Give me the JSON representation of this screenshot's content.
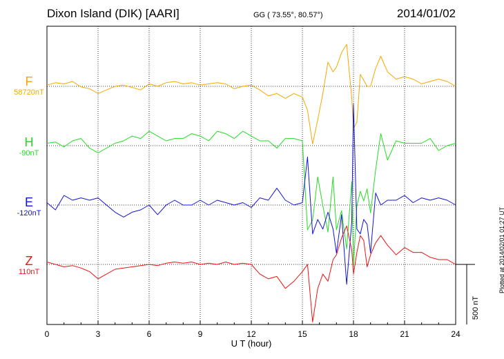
{
  "header": {
    "station": "Dixon Island (DIK)  [AARI]",
    "coords": "GG ( 73.55°,  80.57°)",
    "date": "2014/01/02"
  },
  "footer": {
    "plotted": "Plotted at 2014/02/01 01:27 UT"
  },
  "colors": {
    "F": "#f5a800",
    "H": "#22dd22",
    "E": "#1111dd",
    "Z": "#ee1111"
  },
  "chart_data": {
    "type": "line",
    "title": "Dixon Island (DIK)  [AARI]",
    "xlabel": "U T (hour)",
    "xlim": [
      0,
      24
    ],
    "x_ticks": [
      "0",
      "3",
      "6",
      "9",
      "12",
      "15",
      "18",
      "21",
      "24"
    ],
    "scale_bar": {
      "label": "500 nT",
      "value_nT": 500
    },
    "series": [
      {
        "name": "F",
        "baseline_label": "58720nT",
        "unit": "nT",
        "x": [
          0,
          0.5,
          1,
          1.5,
          2,
          2.5,
          3,
          3.5,
          4,
          4.5,
          5,
          5.5,
          6,
          6.5,
          7,
          7.5,
          8,
          8.5,
          9,
          9.5,
          10,
          10.5,
          11,
          11.5,
          12,
          12.5,
          13,
          13.5,
          14,
          14.5,
          15,
          15.3,
          15.6,
          15.9,
          16.2,
          16.5,
          16.8,
          17,
          17.3,
          17.6,
          17.9,
          18,
          18.2,
          18.4,
          18.6,
          18.8,
          19,
          19.3,
          19.6,
          20,
          20.5,
          21,
          21.5,
          22,
          22.5,
          23,
          23.5,
          24
        ],
        "y": [
          10,
          30,
          20,
          40,
          -5,
          -20,
          -60,
          -30,
          0,
          10,
          -10,
          -30,
          20,
          0,
          30,
          40,
          20,
          30,
          10,
          20,
          30,
          20,
          -20,
          0,
          10,
          -30,
          -80,
          -60,
          -100,
          -60,
          -90,
          -200,
          -480,
          -280,
          -60,
          200,
          120,
          160,
          280,
          350,
          -100,
          -350,
          -300,
          100,
          50,
          0,
          0,
          150,
          250,
          120,
          60,
          80,
          60,
          20,
          40,
          60,
          40,
          0
        ]
      },
      {
        "name": "H",
        "baseline_label": "-90nT",
        "unit": "nT",
        "x": [
          0,
          0.5,
          1,
          1.5,
          2,
          2.5,
          3,
          3.5,
          4,
          4.5,
          5,
          5.5,
          6,
          6.5,
          7,
          7.5,
          8,
          8.5,
          9,
          9.5,
          10,
          10.5,
          11,
          11.5,
          12,
          12.5,
          13,
          13.5,
          14,
          14.5,
          15,
          15.3,
          15.6,
          15.9,
          16.2,
          16.5,
          16.8,
          17,
          17.3,
          17.6,
          17.9,
          18,
          18.2,
          18.4,
          18.6,
          18.8,
          19,
          19.3,
          19.6,
          20,
          20.5,
          21,
          21.5,
          22,
          22.5,
          23,
          23.5,
          24
        ],
        "y": [
          20,
          30,
          -10,
          40,
          60,
          -20,
          -60,
          -20,
          20,
          40,
          80,
          60,
          120,
          80,
          40,
          60,
          60,
          100,
          80,
          40,
          120,
          100,
          60,
          120,
          80,
          40,
          40,
          -20,
          60,
          60,
          40,
          -700,
          -620,
          -260,
          -500,
          -720,
          -260,
          -700,
          -540,
          -860,
          -300,
          -1000,
          -500,
          -380,
          -460,
          -360,
          -560,
          -200,
          100,
          -120,
          40,
          20,
          20,
          20,
          60,
          -40,
          0,
          20
        ]
      },
      {
        "name": "E",
        "baseline_label": "-120nT",
        "unit": "nT",
        "x": [
          0,
          0.5,
          1,
          1.5,
          2,
          2.5,
          3,
          3.5,
          4,
          4.5,
          5,
          5.5,
          6,
          6.5,
          7,
          7.5,
          8,
          8.5,
          9,
          9.5,
          10,
          10.5,
          11,
          11.5,
          12,
          12.5,
          13,
          13.5,
          14,
          14.5,
          15,
          15.3,
          15.6,
          15.9,
          16.2,
          16.5,
          16.8,
          17,
          17.3,
          17.6,
          17.9,
          18,
          18.2,
          18.4,
          18.6,
          18.8,
          19,
          19.3,
          19.6,
          20,
          20.5,
          21,
          21.5,
          22,
          22.5,
          23,
          23.5,
          24
        ],
        "y": [
          20,
          -40,
          80,
          40,
          60,
          40,
          60,
          0,
          -60,
          -100,
          -60,
          -40,
          0,
          -80,
          0,
          40,
          0,
          0,
          40,
          0,
          40,
          20,
          0,
          20,
          -20,
          60,
          40,
          140,
          40,
          0,
          20,
          400,
          -240,
          -120,
          -200,
          -60,
          -200,
          -400,
          -80,
          -660,
          -140,
          840,
          -200,
          -240,
          -120,
          -160,
          -400,
          100,
          0,
          40,
          40,
          80,
          20,
          60,
          40,
          60,
          40,
          0
        ]
      },
      {
        "name": "Z",
        "baseline_label": "110nT",
        "unit": "nT",
        "x": [
          0,
          0.5,
          1,
          1.5,
          2,
          2.5,
          3,
          3.5,
          4,
          4.5,
          5,
          5.5,
          6,
          6.5,
          7,
          7.5,
          8,
          8.5,
          9,
          9.5,
          10,
          10.5,
          11,
          11.5,
          12,
          12.5,
          13,
          13.5,
          14,
          14.5,
          15,
          15.3,
          15.6,
          15.9,
          16.2,
          16.5,
          16.8,
          17,
          17.3,
          17.6,
          17.9,
          18,
          18.2,
          18.4,
          18.6,
          18.8,
          19,
          19.3,
          19.6,
          20,
          20.5,
          21,
          21.5,
          22,
          22.5,
          23,
          23.5,
          24
        ],
        "y": [
          20,
          0,
          -20,
          -10,
          -30,
          -60,
          -120,
          -80,
          -40,
          -30,
          -20,
          -10,
          0,
          -10,
          10,
          20,
          10,
          20,
          0,
          10,
          0,
          20,
          0,
          10,
          0,
          -80,
          -120,
          -100,
          -200,
          -140,
          -60,
          0,
          -480,
          -200,
          -80,
          -140,
          40,
          80,
          220,
          320,
          120,
          -80,
          100,
          240,
          200,
          -20,
          80,
          180,
          240,
          160,
          80,
          140,
          100,
          100,
          60,
          40,
          40,
          0
        ]
      }
    ]
  }
}
